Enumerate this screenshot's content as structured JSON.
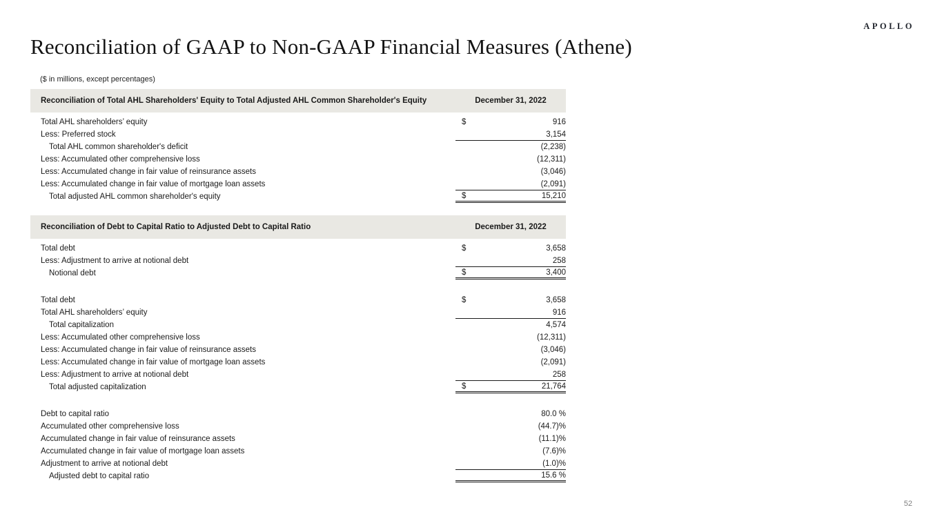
{
  "brand": {
    "logo_text": "APOLLO"
  },
  "page": {
    "title": "Reconciliation of GAAP to Non-GAAP Financial Measures (Athene)",
    "subtitle": "($ in millions, except percentages)",
    "page_number": "52"
  },
  "colors": {
    "header_bar_bg": "#e9e8e3",
    "text": "#1a1a1a",
    "page_number": "#7f7f7f",
    "rule": "#1a1a1a"
  },
  "tables": [
    {
      "header": {
        "label": "Reconciliation of Total AHL Shareholders' Equity  to Total Adjusted AHL Common Shareholder's Equity",
        "date": "December 31, 2022"
      },
      "rows": [
        {
          "label": "Total AHL shareholders’ equity",
          "dollar": "$",
          "value": "916",
          "indent": false,
          "rule": "none"
        },
        {
          "label": "Less: Preferred stock",
          "dollar": "",
          "value": "3,154",
          "indent": false,
          "rule": "single"
        },
        {
          "label": "Total AHL common shareholder's deficit",
          "dollar": "",
          "value": "(2,238)",
          "indent": true,
          "rule": "none"
        },
        {
          "label": "Less: Accumulated other comprehensive loss",
          "dollar": "",
          "value": "(12,311)",
          "indent": false,
          "rule": "none"
        },
        {
          "label": "Less: Accumulated change in fair value of reinsurance assets",
          "dollar": "",
          "value": "(3,046)",
          "indent": false,
          "rule": "none"
        },
        {
          "label": "Less: Accumulated change in fair value of mortgage loan assets",
          "dollar": "",
          "value": "(2,091)",
          "indent": false,
          "rule": "single"
        },
        {
          "label": "Total adjusted AHL common shareholder's equity",
          "dollar": "$",
          "value": "15,210",
          "indent": true,
          "rule": "double"
        }
      ]
    },
    {
      "header": {
        "label": "Reconciliation of Debt to Capital Ratio to Adjusted Debt to Capital Ratio",
        "date": "December 31, 2022"
      },
      "rows": [
        {
          "label": "Total debt",
          "dollar": "$",
          "value": "3,658",
          "indent": false,
          "rule": "none"
        },
        {
          "label": "Less: Adjustment to arrive at notional debt",
          "dollar": "",
          "value": "258",
          "indent": false,
          "rule": "single"
        },
        {
          "label": "Notional debt",
          "dollar": "$",
          "value": "3,400",
          "indent": true,
          "rule": "double"
        },
        {
          "spacer": true
        },
        {
          "label": "Total debt",
          "dollar": "$",
          "value": "3,658",
          "indent": false,
          "rule": "none"
        },
        {
          "label": "Total AHL shareholders’ equity",
          "dollar": "",
          "value": "916",
          "indent": false,
          "rule": "single"
        },
        {
          "label": "Total capitalization",
          "dollar": "",
          "value": "4,574",
          "indent": true,
          "rule": "none"
        },
        {
          "label": "Less: Accumulated other comprehensive loss",
          "dollar": "",
          "value": "(12,311)",
          "indent": false,
          "rule": "none"
        },
        {
          "label": "Less: Accumulated change in fair value of reinsurance assets",
          "dollar": "",
          "value": "(3,046)",
          "indent": false,
          "rule": "none"
        },
        {
          "label": "Less: Accumulated change in fair value of mortgage loan assets",
          "dollar": "",
          "value": "(2,091)",
          "indent": false,
          "rule": "none"
        },
        {
          "label": "Less: Adjustment to arrive at notional debt",
          "dollar": "",
          "value": "258",
          "indent": false,
          "rule": "single"
        },
        {
          "label": "Total adjusted capitalization",
          "dollar": "$",
          "value": "21,764",
          "indent": true,
          "rule": "double"
        },
        {
          "spacer": true
        },
        {
          "label": "Debt to capital ratio",
          "dollar": "",
          "value": "80.0 %",
          "indent": false,
          "rule": "none"
        },
        {
          "label": "Accumulated other comprehensive loss",
          "dollar": "",
          "value": "(44.7)%",
          "indent": false,
          "rule": "none"
        },
        {
          "label": "Accumulated change in fair value of reinsurance assets",
          "dollar": "",
          "value": "(11.1)%",
          "indent": false,
          "rule": "none"
        },
        {
          "label": "Accumulated change in fair value of mortgage loan assets",
          "dollar": "",
          "value": "(7.6)%",
          "indent": false,
          "rule": "none"
        },
        {
          "label": "Adjustment to arrive at notional debt",
          "dollar": "",
          "value": "(1.0)%",
          "indent": false,
          "rule": "single"
        },
        {
          "label": "Adjusted debt to capital ratio",
          "dollar": "",
          "value": "15.6 %",
          "indent": true,
          "rule": "double"
        }
      ]
    }
  ]
}
